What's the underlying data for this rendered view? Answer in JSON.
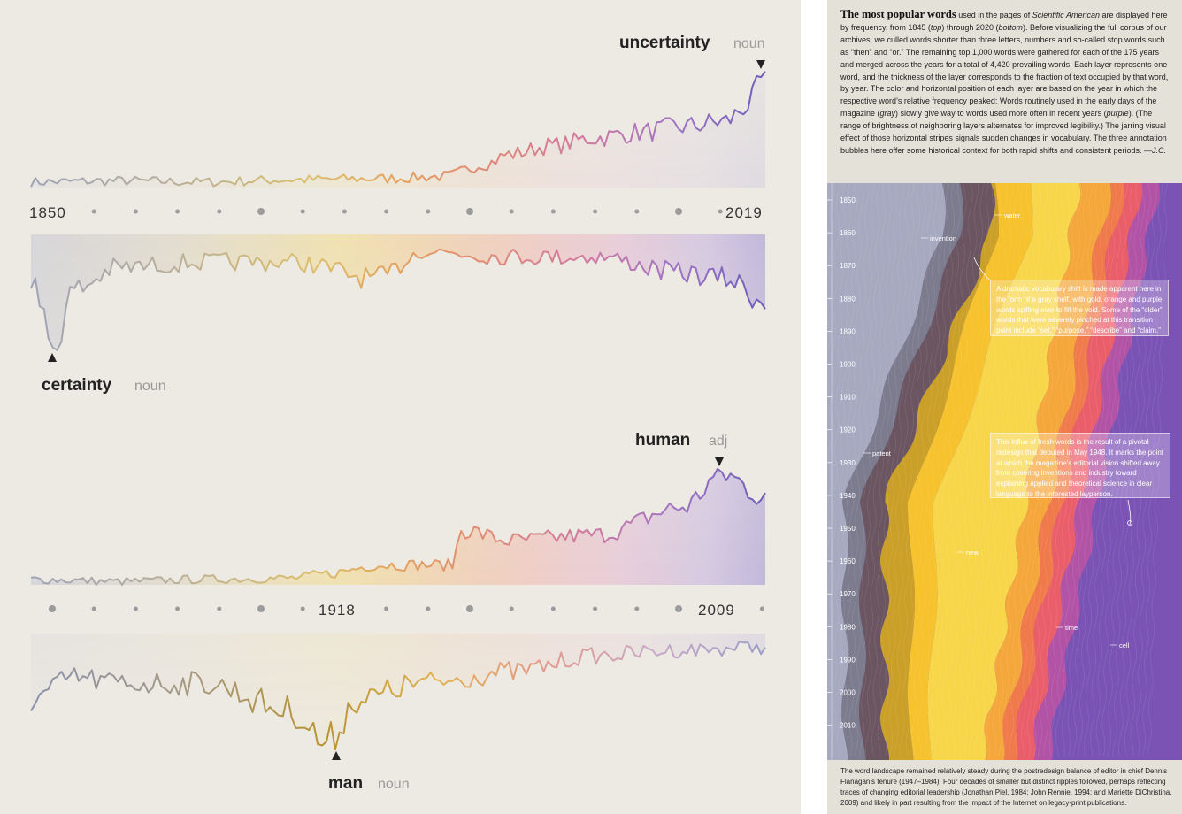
{
  "left": {
    "charts": [
      {
        "word_top": "uncertainty",
        "pos_top": "noun",
        "word_bottom": "certainty",
        "pos_bottom": "noun",
        "axis_start_label": "1850",
        "axis_end_label": "2019"
      },
      {
        "word_top": "human",
        "pos_top": "adj",
        "word_bottom": "man",
        "pos_bottom": "noun",
        "axis_mid_label": "1918",
        "axis_end_label": "2009"
      }
    ]
  },
  "right": {
    "intro_lead": "The most popular words",
    "intro_p1": " used in the pages of ",
    "intro_mag": "Scientific American",
    "intro_p2": " are displayed here by frequency, from 1845 (",
    "intro_top": "top",
    "intro_p3": ") through 2020 (",
    "intro_bottom": "bottom",
    "intro_p4": "). Before visualizing the full corpus of our archives, we culled words shorter than three letters, numbers and so-called stop words such as “then” and “or.” The remaining top 1,000 words were gathered for each of the 175 years and merged across the years for a total of 4,420 prevailing words. Each layer represents one word, and the thickness of the layer corresponds to the fraction of text occupied by that word, by year. The color and horizontal position of each layer are based on the year in which the respective word’s relative frequency peaked: Words routinely used in the early days of the magazine (",
    "intro_gray": "gray",
    "intro_p5": ") slowly give way to words used more often in recent years (",
    "intro_purple": "purple",
    "intro_p6": "). (The range of brightness of neighboring layers alternates for improved legibility.) The jarring visual effect of those horizontal stripes signals sudden changes in vocabulary. The three annotation bubbles here offer some historical context for both rapid shifts and consistent periods. —",
    "intro_sig": "J.C.",
    "year_labels": [
      "1850",
      "1860",
      "1870",
      "1880",
      "1890",
      "1900",
      "1910",
      "1920",
      "1930",
      "1940",
      "1950",
      "1960",
      "1970",
      "1980",
      "1990",
      "2000",
      "2010"
    ],
    "word_labels": {
      "water": "water",
      "invention": "invention",
      "patent": "patent",
      "new": "new",
      "time": "time",
      "cell": "cell"
    },
    "annotation1": "A dramatic vocabulary shift is made apparent here in the form of a gray shelf, with gold, orange and purple words spilling over to fill the void. Some of the “older” words that were severely pinched at this transition point include “set,” “purpose,” “describe” and “claim.”",
    "annotation2": "This influx of fresh words is the result of a pivotal redesign that debuted in May 1948. It marks the point at which the magazine’s editorial vision shifted away from covering inventions and industry toward explaining applied and theoretical science in clear language to the interested layperson.",
    "bottom_note": "The word landscape remained relatively steady during the postredesign balance of editor in chief Dennis Flanagan’s tenure (1947–1984). Four decades of smaller but distinct ripples followed, perhaps reflecting traces of changing editorial leadership (Jonathan Piel, 1984; John Rennie, 1994; and Mariette DiChristina, 2009) and likely in part resulting from the impact of the Internet on legacy-print publications."
  },
  "chart_data": [
    {
      "type": "area",
      "title": "uncertainty (noun)",
      "x": [
        1850,
        1870,
        1890,
        1910,
        1930,
        1945,
        1955,
        1960,
        1970,
        1980,
        1990,
        2000,
        2010,
        2015,
        2019
      ],
      "y": [
        0.05,
        0.06,
        0.05,
        0.07,
        0.08,
        0.1,
        0.22,
        0.3,
        0.38,
        0.45,
        0.5,
        0.55,
        0.6,
        0.75,
        1.0
      ],
      "xlim": [
        1850,
        2019
      ]
    },
    {
      "type": "area",
      "title": "certainty (noun)",
      "x": [
        1850,
        1855,
        1860,
        1870,
        1890,
        1910,
        1930,
        1940,
        1960,
        1980,
        2000,
        2010,
        2019
      ],
      "y": [
        0.4,
        1.0,
        0.5,
        0.3,
        0.25,
        0.25,
        0.4,
        0.15,
        0.2,
        0.2,
        0.35,
        0.4,
        0.6
      ],
      "xlim": [
        1850,
        2019
      ]
    },
    {
      "type": "area",
      "title": "human (adj)",
      "x": [
        1850,
        1870,
        1890,
        1910,
        1918,
        1930,
        1947,
        1949,
        1960,
        1980,
        2000,
        2009,
        2019
      ],
      "y": [
        0.05,
        0.03,
        0.05,
        0.06,
        0.1,
        0.18,
        0.18,
        0.5,
        0.4,
        0.45,
        0.7,
        1.0,
        0.8
      ],
      "xlim": [
        1850,
        2019
      ]
    },
    {
      "type": "area",
      "title": "man (noun)",
      "x": [
        1850,
        1860,
        1870,
        1890,
        1910,
        1918,
        1925,
        1940,
        1960,
        1980,
        2000,
        2019
      ],
      "y": [
        0.6,
        0.4,
        0.45,
        0.45,
        0.7,
        1.0,
        0.6,
        0.45,
        0.35,
        0.2,
        0.15,
        0.12
      ],
      "xlim": [
        1850,
        2019
      ]
    }
  ]
}
